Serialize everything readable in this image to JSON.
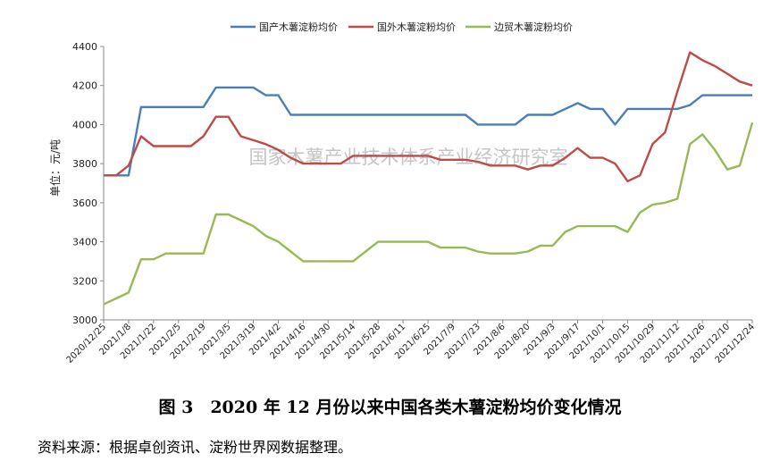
{
  "chart_data": {
    "type": "line",
    "ylabel": "单位：元/吨",
    "ylim": [
      3000,
      4400
    ],
    "yticks": [
      3000,
      3200,
      3400,
      3600,
      3800,
      4000,
      4200,
      4400
    ],
    "grid": false,
    "legend_position": "top",
    "watermark": "国家木薯产业技术体系产业经济研究室",
    "x_tick_labels": [
      "2020/12/25",
      "2021/1/8",
      "2021/1/22",
      "2021/2/5",
      "2021/2/19",
      "2021/3/5",
      "2021/3/19",
      "2021/4/2",
      "2021/4/16",
      "2021/4/30",
      "2021/5/14",
      "2021/5/28",
      "2021/6/11",
      "2021/6/25",
      "2021/7/9",
      "2021/7/23",
      "2021/8/6",
      "2021/8/20",
      "2021/9/3",
      "2021/9/17",
      "2021/10/1",
      "2021/10/15",
      "2021/10/29",
      "2021/11/12",
      "2021/11/26",
      "2021/12/10",
      "2021/12/24"
    ],
    "x_points": [
      "2020/12/25",
      "2021/1/1",
      "2021/1/8",
      "2021/1/15",
      "2021/1/22",
      "2021/1/29",
      "2021/2/5",
      "2021/2/12",
      "2021/2/19",
      "2021/2/26",
      "2021/3/5",
      "2021/3/12",
      "2021/3/19",
      "2021/3/26",
      "2021/4/2",
      "2021/4/9",
      "2021/4/16",
      "2021/4/23",
      "2021/4/30",
      "2021/5/7",
      "2021/5/14",
      "2021/5/21",
      "2021/5/28",
      "2021/6/4",
      "2021/6/11",
      "2021/6/18",
      "2021/6/25",
      "2021/7/2",
      "2021/7/9",
      "2021/7/16",
      "2021/7/23",
      "2021/7/30",
      "2021/8/6",
      "2021/8/13",
      "2021/8/20",
      "2021/8/27",
      "2021/9/3",
      "2021/9/10",
      "2021/9/17",
      "2021/9/24",
      "2021/10/1",
      "2021/10/8",
      "2021/10/15",
      "2021/10/22",
      "2021/10/29",
      "2021/11/5",
      "2021/11/12",
      "2021/11/19",
      "2021/11/26",
      "2021/12/3",
      "2021/12/10",
      "2021/12/17",
      "2021/12/24"
    ],
    "series": [
      {
        "name": "国产木薯淀粉均价",
        "color": "#4a7ebb",
        "values": [
          3740,
          3740,
          3740,
          4090,
          4090,
          4090,
          4090,
          4090,
          4090,
          4190,
          4190,
          4190,
          4190,
          4150,
          4150,
          4050,
          4050,
          4050,
          4050,
          4050,
          4050,
          4050,
          4050,
          4050,
          4050,
          4050,
          4050,
          4050,
          4050,
          4050,
          4000,
          4000,
          4000,
          4000,
          4050,
          4050,
          4050,
          4080,
          4110,
          4080,
          4080,
          4000,
          4080,
          4080,
          4080,
          4080,
          4080,
          4100,
          4150,
          4150,
          4150,
          4150,
          4150
        ]
      },
      {
        "name": "国外木薯淀粉均价",
        "color": "#be4b48",
        "values": [
          3740,
          3740,
          3790,
          3940,
          3890,
          3890,
          3890,
          3890,
          3940,
          4040,
          4040,
          3940,
          3920,
          3900,
          3870,
          3830,
          3800,
          3800,
          3800,
          3800,
          3840,
          3840,
          3840,
          3840,
          3840,
          3840,
          3840,
          3820,
          3820,
          3820,
          3810,
          3790,
          3790,
          3790,
          3770,
          3790,
          3790,
          3830,
          3880,
          3830,
          3830,
          3800,
          3710,
          3740,
          3900,
          3960,
          4170,
          4370,
          4330,
          4300,
          4260,
          4220,
          4200
        ]
      },
      {
        "name": "边贸木薯淀粉均价",
        "color": "#98b954",
        "values": [
          3080,
          3110,
          3140,
          3310,
          3310,
          3340,
          3340,
          3340,
          3340,
          3540,
          3540,
          3510,
          3480,
          3430,
          3400,
          3350,
          3300,
          3300,
          3300,
          3300,
          3300,
          3350,
          3400,
          3400,
          3400,
          3400,
          3400,
          3370,
          3370,
          3370,
          3350,
          3340,
          3340,
          3340,
          3350,
          3380,
          3380,
          3450,
          3480,
          3480,
          3480,
          3480,
          3450,
          3550,
          3590,
          3600,
          3620,
          3900,
          3950,
          3870,
          3770,
          3790,
          4010
        ]
      }
    ]
  },
  "caption": "图 3　2020 年 12 月份以来中国各类木薯淀粉均价变化情况",
  "source": "资料来源：根据卓创资讯、淀粉世界网数据整理。"
}
